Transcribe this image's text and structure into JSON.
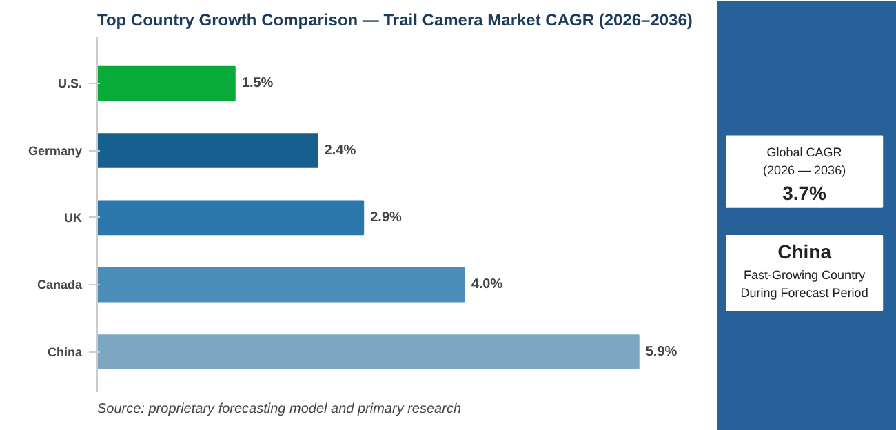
{
  "chart_data": [
    {
      "type": "bar",
      "orientation": "horizontal",
      "title": "Top Country Growth Comparison — Trail Camera Market CAGR (2026–2036)",
      "categories": [
        "U.S.",
        "Germany",
        "UK",
        "Canada",
        "China"
      ],
      "values": [
        1.5,
        2.4,
        2.9,
        4.0,
        5.9
      ],
      "colors": [
        "#0aab3a",
        "#175f8e",
        "#2b76aa",
        "#4a8db8",
        "#7ca6c2"
      ],
      "value_labels": [
        "1.5%",
        "2.4%",
        "2.9%",
        "4.0%",
        "5.9%"
      ],
      "grid": false,
      "annotations": [
        "Source: proprietary forecasting model and primary research"
      ]
    },
    {
      "type": "other",
      "annotations": [
        "Global CAGR",
        "(2026 — 2036)",
        "3.7%",
        "China",
        "Fast-Growing Country",
        "During Forecast Period"
      ]
    }
  ]
}
